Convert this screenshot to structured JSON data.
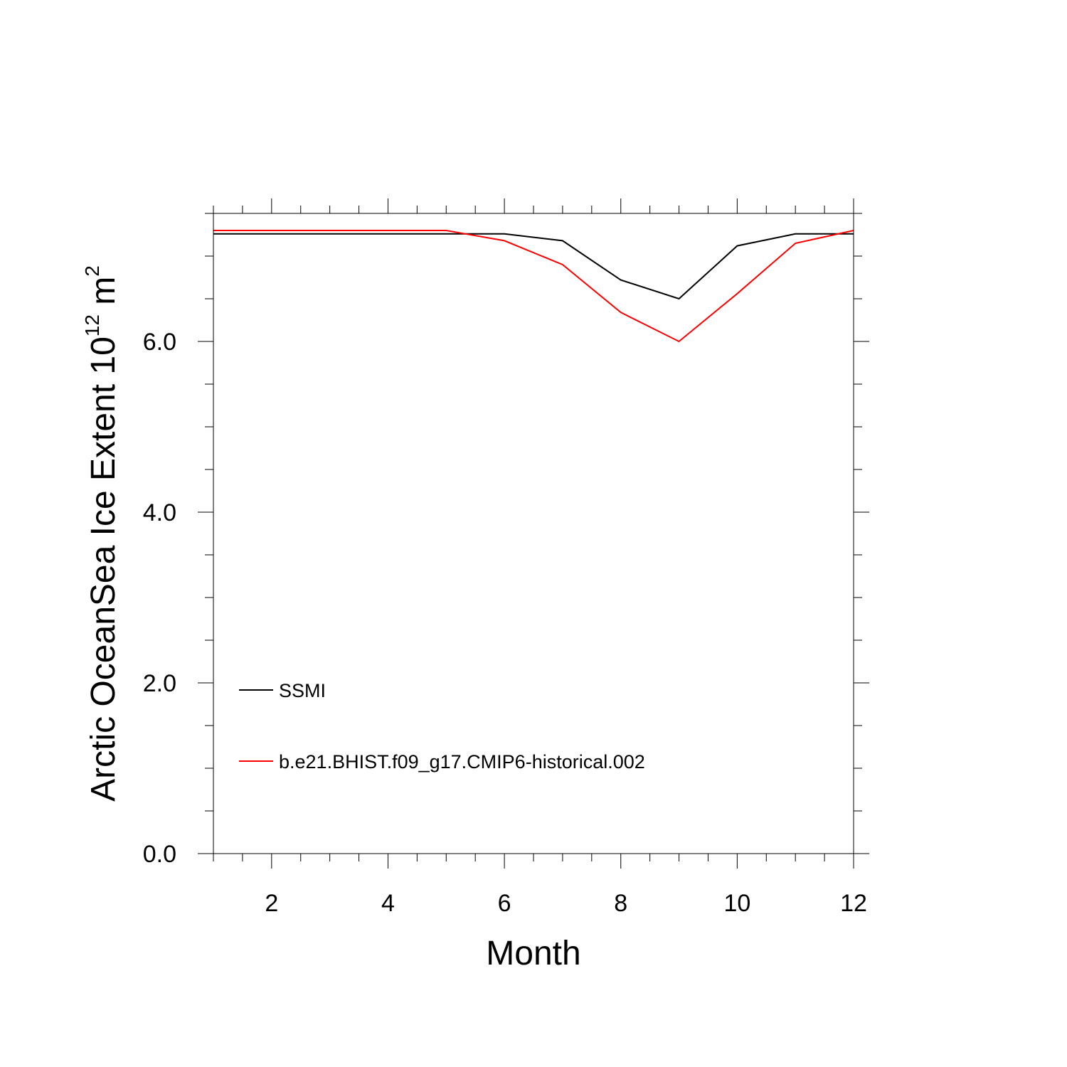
{
  "chart_data": {
    "type": "line",
    "title": "",
    "xlabel": "Month",
    "ylabel": {
      "base": "Arctic OceanSea Ice Extent 10",
      "sup1": "12",
      "mid": " m",
      "sup2": "2"
    },
    "xlim": [
      1,
      12
    ],
    "ylim": [
      0,
      7.5
    ],
    "x_ticks": [
      2,
      4,
      6,
      8,
      10,
      12
    ],
    "x_tick_labels": [
      "2",
      "4",
      "6",
      "8",
      "10",
      "12"
    ],
    "y_ticks": [
      0,
      2,
      4,
      6
    ],
    "y_tick_labels": [
      "0.0",
      "2.0",
      "4.0",
      "6.0"
    ],
    "x_minor_step": 0.5,
    "y_minor_step": 0.5,
    "grid": false,
    "legend_position": "bottom-left inside",
    "x": [
      1,
      2,
      3,
      4,
      5,
      6,
      7,
      8,
      9,
      10,
      11,
      12
    ],
    "series": [
      {
        "name": "SSMI",
        "color": "#000000",
        "values": [
          7.26,
          7.26,
          7.26,
          7.26,
          7.26,
          7.26,
          7.18,
          6.72,
          6.5,
          7.12,
          7.26,
          7.26
        ]
      },
      {
        "name": "b.e21.BHIST.f09_g17.CMIP6-historical.002",
        "color": "#ff0000",
        "values": [
          7.3,
          7.3,
          7.3,
          7.3,
          7.3,
          7.18,
          6.9,
          6.34,
          6.0,
          6.56,
          7.15,
          7.3
        ]
      }
    ]
  }
}
